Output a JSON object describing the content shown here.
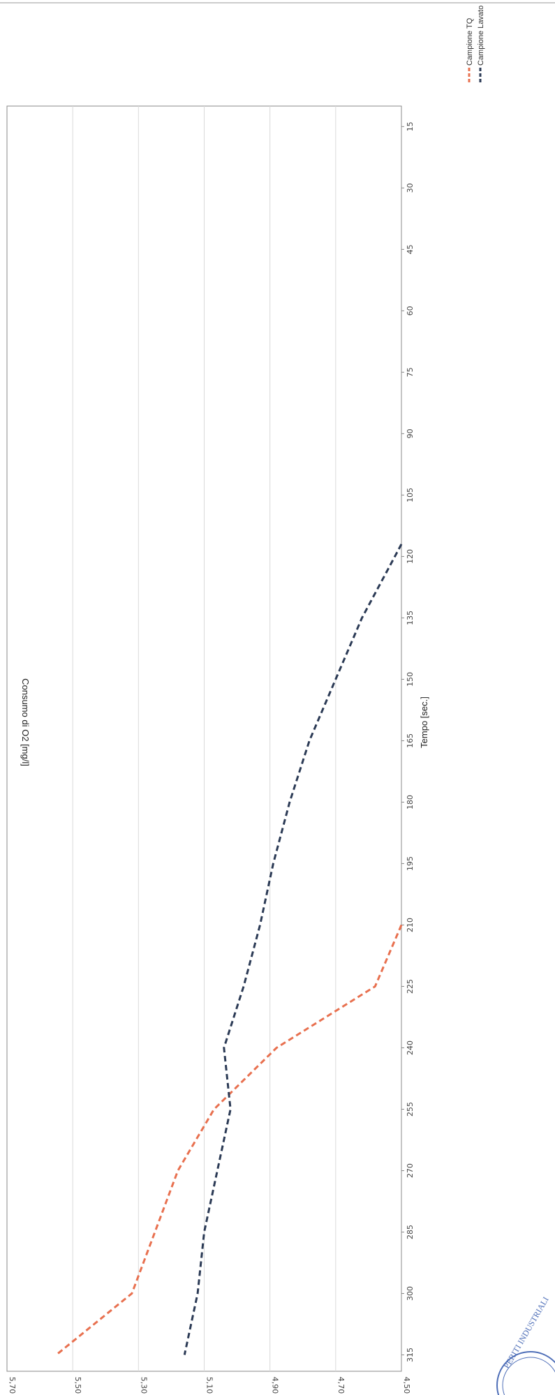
{
  "chart_data": {
    "type": "line",
    "xlabel": "Tempo [sec.]",
    "ylabel": "Consumo di O2 [mg/l]",
    "x_ticks": [
      "15",
      "30",
      "45",
      "60",
      "75",
      "90",
      "105",
      "120",
      "135",
      "150",
      "165",
      "180",
      "195",
      "210",
      "225",
      "240",
      "255",
      "270",
      "285",
      "300",
      "315"
    ],
    "y_ticks": [
      "4,50",
      "4,70",
      "4,90",
      "5,10",
      "5,30",
      "5,50",
      "5,70"
    ],
    "xlim": [
      10,
      319
    ],
    "ylim": [
      4.5,
      5.7
    ],
    "grid": true,
    "legend": "top-right",
    "line_style": "dashed",
    "series": [
      {
        "name": "Campione TQ",
        "color": "#e8704f",
        "points": [
          [
            210,
            4.5
          ],
          [
            225,
            4.58
          ],
          [
            240,
            4.88
          ],
          [
            255,
            5.07
          ],
          [
            270,
            5.18
          ],
          [
            285,
            5.25
          ],
          [
            300,
            5.32
          ],
          [
            315,
            5.55
          ]
        ]
      },
      {
        "name": "Campione Lavato",
        "color": "#2b3a55",
        "points": [
          [
            117,
            4.5
          ],
          [
            120,
            4.52
          ],
          [
            135,
            4.62
          ],
          [
            150,
            4.7
          ],
          [
            165,
            4.78
          ],
          [
            180,
            4.84
          ],
          [
            195,
            4.89
          ],
          [
            210,
            4.93
          ],
          [
            225,
            4.98
          ],
          [
            240,
            5.04
          ],
          [
            255,
            5.02
          ],
          [
            270,
            5.06
          ],
          [
            285,
            5.1
          ],
          [
            300,
            5.12
          ],
          [
            315,
            5.16
          ]
        ]
      }
    ]
  },
  "stamp_text": "PERITI INDUSTRIALI"
}
